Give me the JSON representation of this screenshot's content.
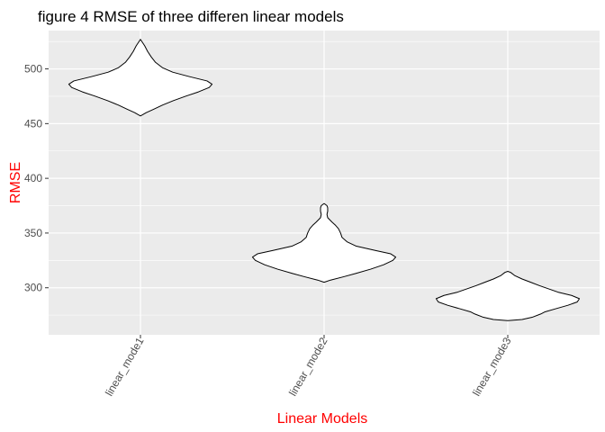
{
  "chart_data": {
    "type": "violin",
    "title": "figure 4 RMSE of three differen linear models",
    "xlabel": "Linear Models",
    "ylabel": "RMSE",
    "categories": [
      "linear_mode1",
      "linear_mode2",
      "linear_mode3"
    ],
    "ylim": [
      257,
      535
    ],
    "yticks": [
      300,
      350,
      400,
      450,
      500
    ],
    "x_tick_rotation": -60,
    "grid": true,
    "panel_background": "#ebebeb",
    "gridline_color": "#ffffff",
    "axis_label_color": "#ff0000",
    "violin_fill": "#ffffff",
    "violin_stroke": "#000000",
    "violins": [
      {
        "category": "linear_mode1",
        "min": 457,
        "max": 527,
        "profile": [
          [
            457,
            0.0
          ],
          [
            460,
            0.08
          ],
          [
            463,
            0.18
          ],
          [
            467,
            0.31
          ],
          [
            471,
            0.46
          ],
          [
            475,
            0.63
          ],
          [
            479,
            0.81
          ],
          [
            483,
            0.96
          ],
          [
            486,
            1.0
          ],
          [
            489,
            0.93
          ],
          [
            493,
            0.68
          ],
          [
            497,
            0.45
          ],
          [
            501,
            0.31
          ],
          [
            506,
            0.21
          ],
          [
            511,
            0.15
          ],
          [
            516,
            0.1
          ],
          [
            521,
            0.06
          ],
          [
            524,
            0.03
          ],
          [
            527,
            0.0
          ]
        ]
      },
      {
        "category": "linear_mode2",
        "min": 305,
        "max": 377,
        "profile": [
          [
            305,
            0.0
          ],
          [
            307,
            0.09
          ],
          [
            310,
            0.27
          ],
          [
            313,
            0.44
          ],
          [
            317,
            0.65
          ],
          [
            321,
            0.83
          ],
          [
            325,
            0.96
          ],
          [
            328,
            1.0
          ],
          [
            331,
            0.93
          ],
          [
            334,
            0.72
          ],
          [
            338,
            0.45
          ],
          [
            342,
            0.32
          ],
          [
            346,
            0.25
          ],
          [
            350,
            0.23
          ],
          [
            354,
            0.2
          ],
          [
            357,
            0.16
          ],
          [
            360,
            0.11
          ],
          [
            364,
            0.05
          ],
          [
            367,
            0.04
          ],
          [
            370,
            0.05
          ],
          [
            373,
            0.05
          ],
          [
            375,
            0.04
          ],
          [
            377,
            0.0
          ]
        ]
      },
      {
        "category": "linear_mode3",
        "min": 270,
        "max": 315,
        "profile": [
          [
            270,
            0.0
          ],
          [
            271,
            0.2
          ],
          [
            273,
            0.34
          ],
          [
            276,
            0.46
          ],
          [
            278,
            0.52
          ],
          [
            281,
            0.68
          ],
          [
            284,
            0.84
          ],
          [
            287,
            0.97
          ],
          [
            290,
            1.0
          ],
          [
            293,
            0.89
          ],
          [
            296,
            0.7
          ],
          [
            299,
            0.57
          ],
          [
            302,
            0.44
          ],
          [
            305,
            0.32
          ],
          [
            308,
            0.2
          ],
          [
            311,
            0.1
          ],
          [
            314,
            0.04
          ],
          [
            315,
            0.0
          ]
        ]
      }
    ]
  }
}
